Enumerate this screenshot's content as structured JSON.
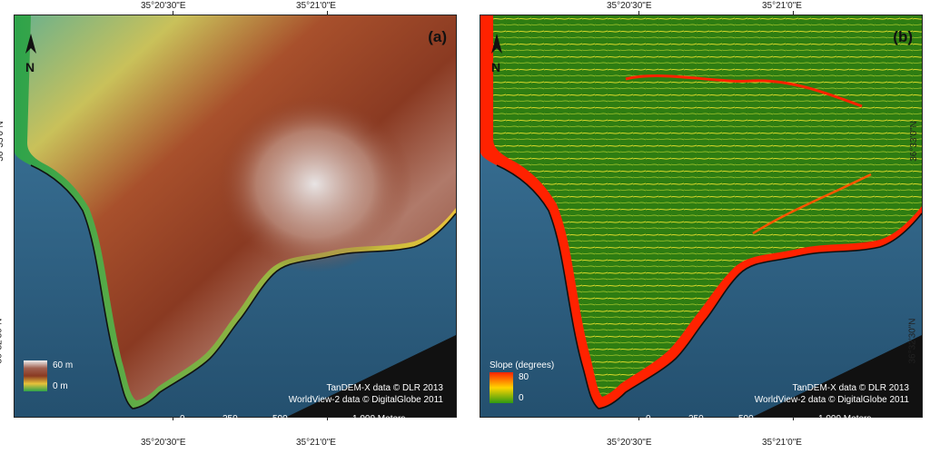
{
  "panels": [
    {
      "id": "a",
      "label": "(a)",
      "legend": {
        "max": "60 m",
        "min": "0 m"
      },
      "credits": [
        "TanDEM-X data © DLR 2013",
        "WorldView-2 data © DigitalGlobe 2011"
      ],
      "scale": [
        "0",
        "250",
        "500",
        "1.000 Meters"
      ]
    },
    {
      "id": "b",
      "label": "(b)",
      "legend": {
        "title": "Slope (degrees)",
        "max": "80",
        "min": "0"
      },
      "credits": [
        "TanDEM-X data © DLR 2013",
        "WorldView-2 data © DigitalGlobe 2011"
      ],
      "scale": [
        "0",
        "250",
        "500",
        "1.000 Meters"
      ]
    }
  ],
  "ticks": {
    "lon_left": "35°20'30\"E",
    "lon_right": "35°21'0\"E",
    "lat_top": "36°33'0\"N",
    "lat_bottom": "36°32'30\"N"
  },
  "north_arrow": "N",
  "colors": {
    "sea": "#2b5d80",
    "slope_low": "#2e7d12",
    "slope_high": "#ff2200"
  }
}
